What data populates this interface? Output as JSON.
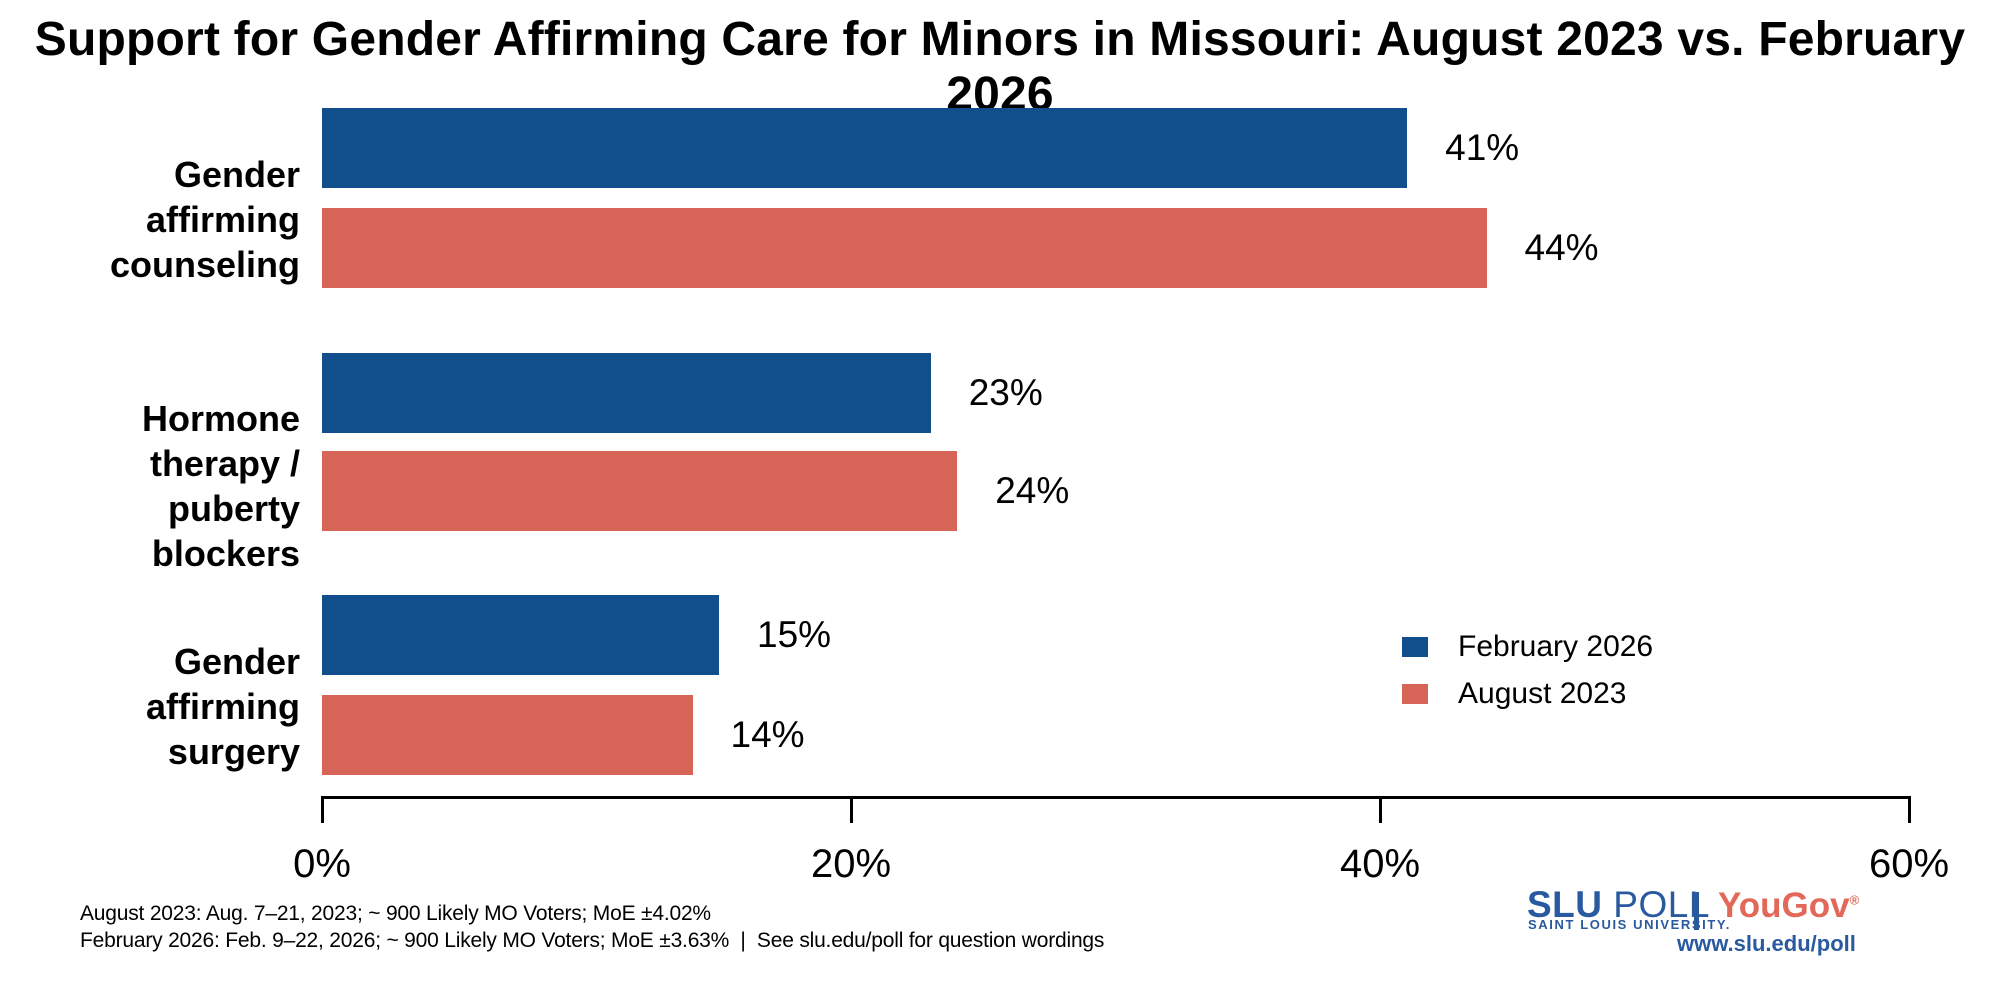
{
  "title": "Support for Gender Affirming Care for Minors in Missouri: August 2023 vs. February 2026",
  "chart_data": {
    "type": "bar",
    "orientation": "horizontal",
    "title": "Support for Gender Affirming Care for Minors in Missouri: August 2023 vs. February 2026",
    "categories": [
      "Gender affirming counseling",
      "Hormone therapy / puberty blockers",
      "Gender affirming surgery"
    ],
    "series": [
      {
        "name": "February 2026",
        "color": "#114E8C",
        "values": [
          41,
          23,
          15
        ],
        "labels": [
          "41%",
          "23%",
          "15%"
        ]
      },
      {
        "name": "August 2023",
        "color": "#D76557",
        "values": [
          44,
          24,
          14
        ],
        "labels": [
          "44%",
          "24%",
          "14%"
        ]
      }
    ],
    "xlabel": "",
    "ylabel": "",
    "x_axis": {
      "min": 0,
      "max": 60,
      "ticks": [
        "0%",
        "20%",
        "40%",
        "60%"
      ],
      "tick_values": [
        0,
        20,
        40,
        60
      ]
    },
    "grid": false,
    "legend_position": "middle-right",
    "value_labels_shown": true
  },
  "category_labels": [
    {
      "line1": "Gender affirming",
      "line2": "counseling"
    },
    {
      "line1": "Hormone therapy /",
      "line2": "puberty blockers"
    },
    {
      "line1": "Gender affirming",
      "line2": "surgery"
    }
  ],
  "legend": {
    "items": [
      {
        "label": "February 2026",
        "color": "#114E8C"
      },
      {
        "label": "August 2023",
        "color": "#D76557"
      }
    ]
  },
  "footnotes": {
    "line1": "August 2023: Aug. 7–21, 2023; ~ 900 Likely MO Voters; MoE ±4.02%",
    "line2": "February 2026: Feb. 9–22, 2026; ~ 900 Likely MO Voters; MoE ±3.63%  |  See slu.edu/poll for question wordings"
  },
  "branding": {
    "slu": "SLU",
    "poll": "POLL",
    "university": "SAINT LOUIS UNIVERSITY.",
    "yougov": "YouGov",
    "registered": "®",
    "url": "www.slu.edu/poll",
    "slu_blue": "#29599E",
    "yougov_red": "#E2685A"
  }
}
